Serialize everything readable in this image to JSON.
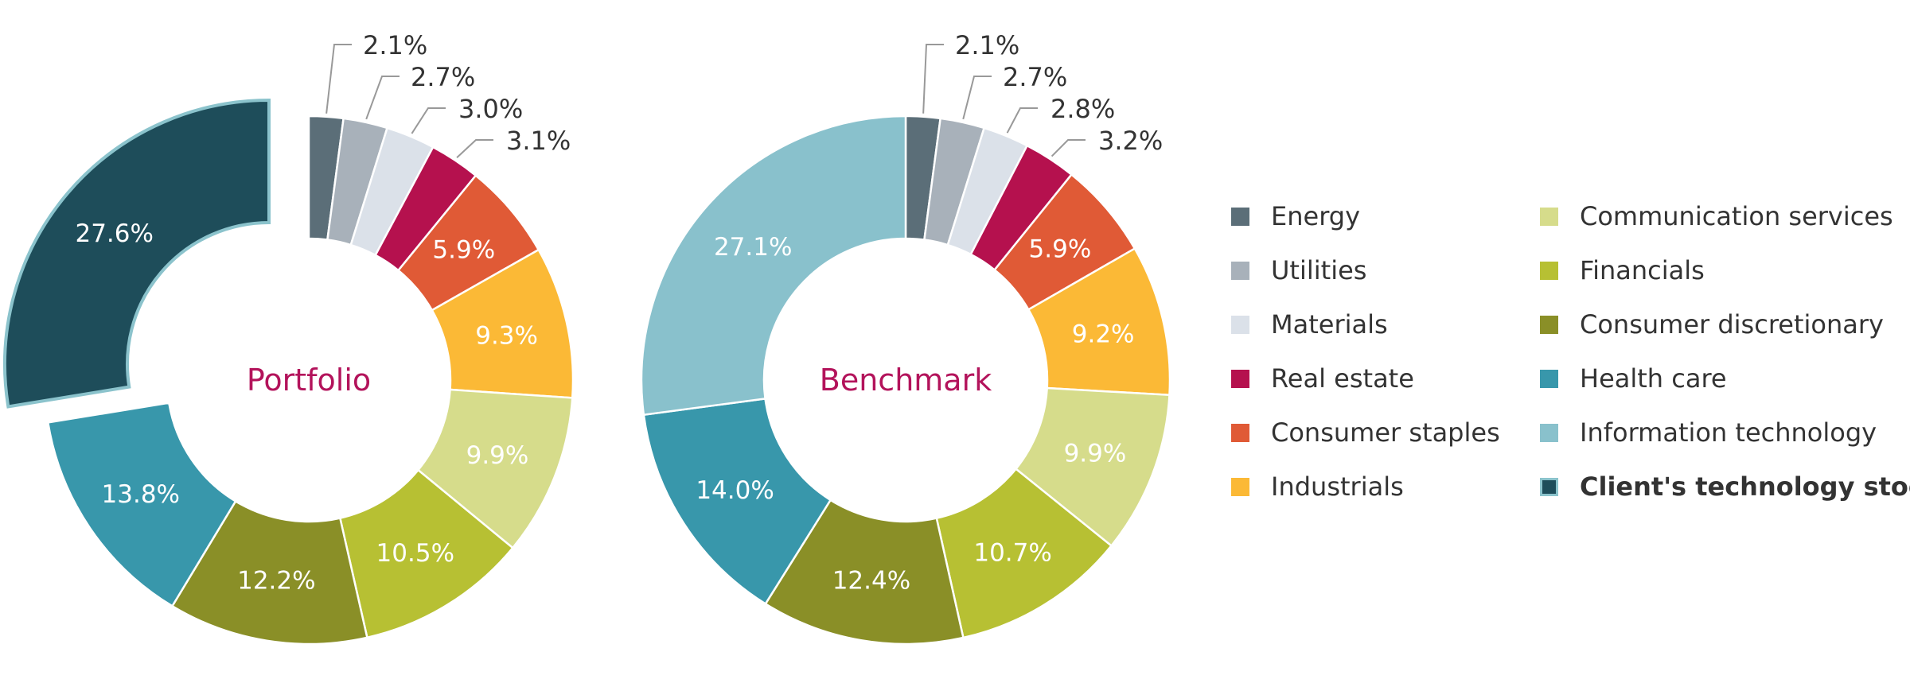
{
  "chart_data": [
    {
      "type": "pie",
      "title": "Portfolio",
      "categories": [
        "Energy",
        "Utilities",
        "Materials",
        "Real estate",
        "Consumer staples",
        "Industrials",
        "Communication services",
        "Financials",
        "Consumer discretionary",
        "Health care",
        "Client's technology stock"
      ],
      "values": [
        2.1,
        2.7,
        3.0,
        3.1,
        5.9,
        9.3,
        9.9,
        10.5,
        12.2,
        13.8,
        27.6
      ],
      "labels": [
        "2.1%",
        "2.7%",
        "3.0%",
        "3.1%",
        "5.9%",
        "9.3%",
        "9.9%",
        "10.5%",
        "12.2%",
        "13.8%",
        "27.6%"
      ],
      "exploded": "Client's technology stock"
    },
    {
      "type": "pie",
      "title": "Benchmark",
      "categories": [
        "Energy",
        "Utilities",
        "Materials",
        "Real estate",
        "Consumer staples",
        "Industrials",
        "Communication services",
        "Financials",
        "Consumer discretionary",
        "Health care",
        "Information technology"
      ],
      "values": [
        2.1,
        2.7,
        2.8,
        3.2,
        5.9,
        9.2,
        9.9,
        10.7,
        12.4,
        14.0,
        27.1
      ],
      "labels": [
        "2.1%",
        "2.7%",
        "2.8%",
        "3.2%",
        "5.9%",
        "9.2%",
        "9.9%",
        "10.7%",
        "12.4%",
        "14.0%",
        "27.1%"
      ]
    }
  ],
  "colors": {
    "Energy": "#5b6e78",
    "Utilities": "#a8b1ba",
    "Materials": "#dbe1e9",
    "Real estate": "#b5114e",
    "Consumer staples": "#e05a36",
    "Industrials": "#fbb936",
    "Communication services": "#d6dc8b",
    "Financials": "#b7c033",
    "Consumer discretionary": "#8a8f27",
    "Health care": "#3897ab",
    "Information technology": "#89c1cc",
    "Client's technology stock": "#1e4d5a",
    "center_title": "#b3135b",
    "leader_line": "#999999",
    "callout_text": "#333333"
  },
  "legend": {
    "position": "right",
    "col1": [
      {
        "label": "Energy",
        "color": "#5b6e78"
      },
      {
        "label": "Utilities",
        "color": "#a8b1ba"
      },
      {
        "label": "Materials",
        "color": "#dbe1e9"
      },
      {
        "label": "Real estate",
        "color": "#b5114e"
      },
      {
        "label": "Consumer staples",
        "color": "#e05a36"
      },
      {
        "label": "Industrials",
        "color": "#fbb936"
      }
    ],
    "col2": [
      {
        "label": "Communication services",
        "color": "#d6dc8b"
      },
      {
        "label": "Financials",
        "color": "#b7c033"
      },
      {
        "label": "Consumer discretionary",
        "color": "#8a8f27"
      },
      {
        "label": "Health care",
        "color": "#3897ab"
      },
      {
        "label": "Information technology",
        "color": "#89c1cc"
      },
      {
        "label": "Client's technology stock",
        "color": "#1e4d5a",
        "bold": true
      }
    ]
  }
}
